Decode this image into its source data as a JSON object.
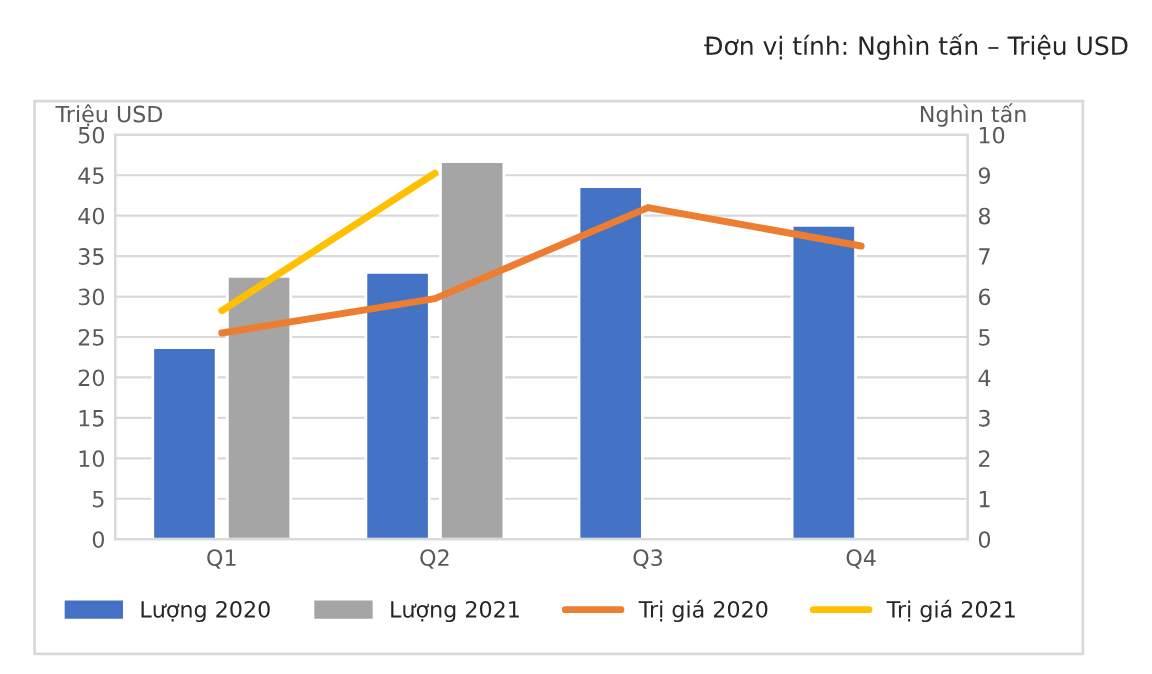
{
  "chart_data": {
    "type": "bar",
    "annotations": [
      "Đơn vị tính: Nghìn tấn – Triệu USD"
    ],
    "ylabel": "Triệu USD",
    "y2label": "Nghìn tấn",
    "categories": [
      "Q1",
      "Q2",
      "Q3",
      "Q4"
    ],
    "series": [
      {
        "name": "Lượng 2020",
        "color": "#4472c4",
        "values": [
          23.7,
          33.0,
          43.6,
          38.8
        ]
      },
      {
        "name": "Lượng 2021",
        "color": "#a5a5a5",
        "values": [
          32.5,
          46.7,
          null,
          null
        ]
      },
      {
        "name": "Trị giá 2020",
        "type": "line",
        "axis": "y2",
        "color": "#ed7d31",
        "values": [
          5.1,
          5.95,
          8.2,
          7.25
        ]
      },
      {
        "name": "Trị giá 2021",
        "type": "line",
        "axis": "y2",
        "color": "#ffc000",
        "values": [
          5.65,
          9.05,
          null,
          null
        ]
      }
    ],
    "ylim": [
      0,
      50
    ],
    "yticks": [
      0,
      5,
      10,
      15,
      20,
      25,
      30,
      35,
      40,
      45,
      50
    ],
    "y2lim": [
      0,
      10
    ],
    "y2ticks": [
      0,
      1,
      2,
      3,
      4,
      5,
      6,
      7,
      8,
      9,
      10
    ],
    "grid": "y",
    "legend": "bottom",
    "marker": "none",
    "line_style": "solid"
  }
}
